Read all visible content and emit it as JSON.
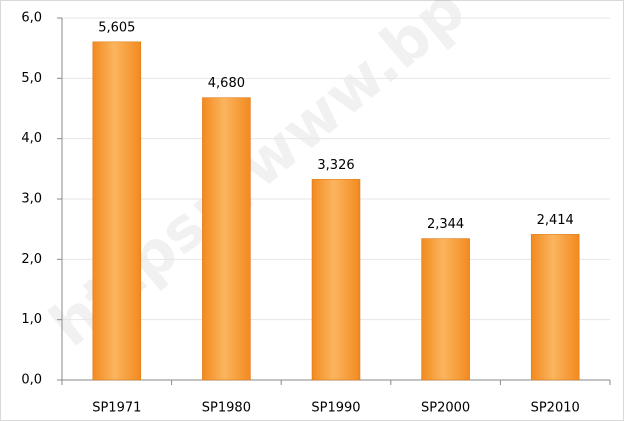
{
  "chart_data": {
    "type": "bar",
    "watermark": "https://www.bp",
    "categories": [
      "SP1971",
      "SP1980",
      "SP1990",
      "SP2000",
      "SP2010"
    ],
    "values": [
      5.605,
      4.68,
      3.326,
      2.344,
      2.414
    ],
    "value_labels": [
      "5,605",
      "4,680",
      "3,326",
      "2,344",
      "2,414"
    ],
    "color": "#f28a1f",
    "ylim": [
      0,
      6
    ],
    "yticks": [
      {
        "value": 0,
        "label": "0,0"
      },
      {
        "value": 1,
        "label": "1,0"
      },
      {
        "value": 2,
        "label": "2,0"
      },
      {
        "value": 3,
        "label": "3,0"
      },
      {
        "value": 4,
        "label": "4,0"
      },
      {
        "value": 5,
        "label": "5,0"
      },
      {
        "value": 6,
        "label": "6,0"
      }
    ],
    "grid": true
  }
}
